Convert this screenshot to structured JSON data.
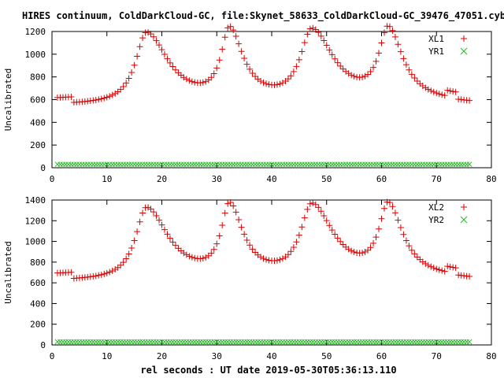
{
  "title": "HIRES continuum, ColdDarkCloud-GC, file:Skynet_58633_ColdDarkCloud-GC_39476_47051.cyb.txt",
  "xlabel": "rel seconds : UT date 2019-05-30T05:36:13.110",
  "colors": {
    "red": "#dd0000",
    "green": "#22bb22",
    "axis": "#000000"
  },
  "chart_data": [
    {
      "type": "scatter",
      "ylabel": "Uncalibrated",
      "xlim": [
        0,
        80
      ],
      "ylim": [
        0,
        1200
      ],
      "xticks": [
        0,
        10,
        20,
        30,
        40,
        50,
        60,
        70,
        80
      ],
      "yticks": [
        0,
        200,
        400,
        600,
        800,
        1000,
        1200
      ],
      "legend": "top-right",
      "series": [
        {
          "name": "XL1",
          "marker": "+",
          "color": "#dd0000",
          "model": {
            "x_start": 1,
            "x_end": 76,
            "x_step": 0.5,
            "baseline_segments": [
              {
                "x0": 0.5,
                "x1": 4.0,
                "y": 600
              },
              {
                "x0": 4.0,
                "x1": 72.0,
                "y": 550
              },
              {
                "x0": 72.0,
                "x1": 74.0,
                "y": 600
              },
              {
                "x0": 74.0,
                "x1": 77.0,
                "y": 540
              }
            ],
            "peaks": [
              {
                "x": 17.2,
                "height": 630,
                "w_left": 2.4,
                "w_right": 4.8
              },
              {
                "x": 32.3,
                "height": 620,
                "w_left": 1.8,
                "w_right": 3.0
              },
              {
                "x": 47.3,
                "height": 630,
                "w_left": 2.5,
                "w_right": 4.8
              },
              {
                "x": 61.2,
                "height": 620,
                "w_left": 2.0,
                "w_right": 3.2
              }
            ]
          }
        },
        {
          "name": "YR1",
          "marker": "x",
          "color": "#22bb22",
          "model": {
            "x_start": 1,
            "x_end": 76,
            "x_step": 0.5,
            "y": 30
          }
        }
      ]
    },
    {
      "type": "scatter",
      "ylabel": "Uncalibrated",
      "xlim": [
        0,
        80
      ],
      "ylim": [
        0,
        1400
      ],
      "xticks": [
        0,
        10,
        20,
        30,
        40,
        50,
        60,
        70,
        80
      ],
      "yticks": [
        0,
        200,
        400,
        600,
        800,
        1000,
        1200,
        1400
      ],
      "legend": "top-right",
      "series": [
        {
          "name": "XL2",
          "marker": "+",
          "color": "#dd0000",
          "model": {
            "x_start": 1,
            "x_end": 76,
            "x_step": 0.5,
            "baseline_segments": [
              {
                "x0": 0.5,
                "x1": 4.0,
                "y": 675
              },
              {
                "x0": 4.0,
                "x1": 72.0,
                "y": 615
              },
              {
                "x0": 72.0,
                "x1": 74.0,
                "y": 670
              },
              {
                "x0": 74.0,
                "x1": 77.0,
                "y": 605
              }
            ],
            "peaks": [
              {
                "x": 17.2,
                "height": 700,
                "w_left": 2.4,
                "w_right": 4.8
              },
              {
                "x": 32.3,
                "height": 680,
                "w_left": 1.8,
                "w_right": 3.0
              },
              {
                "x": 47.3,
                "height": 700,
                "w_left": 2.5,
                "w_right": 4.8
              },
              {
                "x": 61.2,
                "height": 680,
                "w_left": 2.0,
                "w_right": 3.2
              }
            ]
          }
        },
        {
          "name": "YR2",
          "marker": "x",
          "color": "#22bb22",
          "model": {
            "x_start": 1,
            "x_end": 76,
            "x_step": 0.5,
            "y": 30
          }
        }
      ]
    }
  ]
}
